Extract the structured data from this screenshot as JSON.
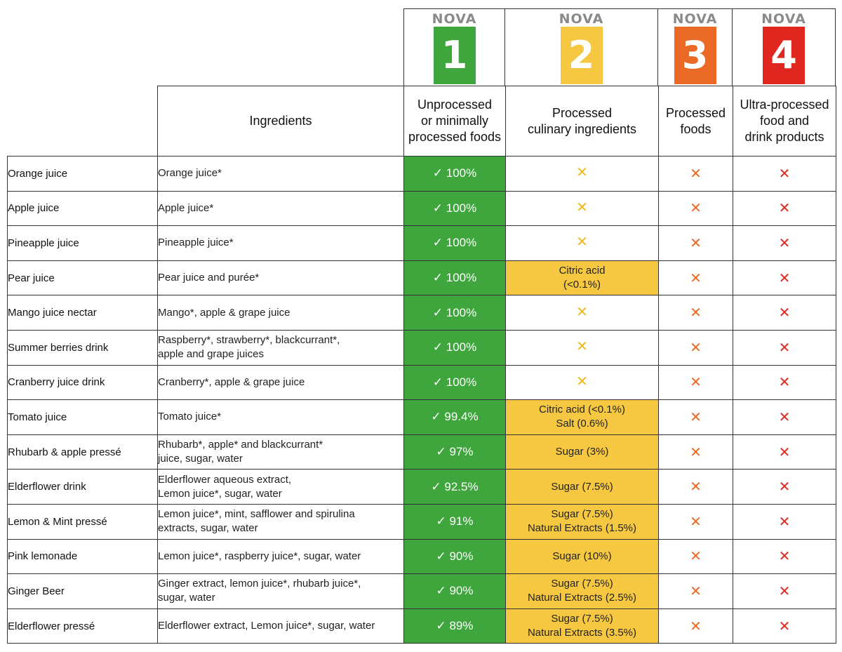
{
  "nova_columns": [
    {
      "label": "NOVA",
      "number": "1",
      "color": "#3ea63c",
      "title_lines": [
        "Unprocessed",
        "or minimally",
        "processed foods"
      ]
    },
    {
      "label": "NOVA",
      "number": "2",
      "color": "#f6c842",
      "title_lines": [
        "Processed",
        "culinary ingredients"
      ]
    },
    {
      "label": "NOVA",
      "number": "3",
      "color": "#ea6a25",
      "title_lines": [
        "Processed",
        "foods"
      ]
    },
    {
      "label": "NOVA",
      "number": "4",
      "color": "#e0271f",
      "title_lines": [
        "Ultra-processed",
        "food and",
        "drink products"
      ]
    }
  ],
  "ingredients_header": "Ingredients",
  "no_mark": "✕",
  "rows": [
    {
      "product": "Orange juice",
      "ingredients": [
        "Orange juice*"
      ],
      "nova1": "✓  100%",
      "nova2": []
    },
    {
      "product": "Apple juice",
      "ingredients": [
        "Apple juice*"
      ],
      "nova1": "✓  100%",
      "nova2": []
    },
    {
      "product": "Pineapple juice",
      "ingredients": [
        "Pineapple juice*"
      ],
      "nova1": "✓  100%",
      "nova2": []
    },
    {
      "product": "Pear juice",
      "ingredients": [
        "Pear juice and purée*"
      ],
      "nova1": "✓  100%",
      "nova2": [
        "Citric acid",
        "(<0.1%)"
      ]
    },
    {
      "product": "Mango juice nectar",
      "ingredients": [
        "Mango*, apple & grape juice"
      ],
      "nova1": "✓  100%",
      "nova2": []
    },
    {
      "product": "Summer berries drink",
      "ingredients": [
        "Raspberry*, strawberry*, blackcurrant*,",
        "apple and grape juices"
      ],
      "nova1": "✓  100%",
      "nova2": []
    },
    {
      "product": "Cranberry juice drink",
      "ingredients": [
        "Cranberry*, apple & grape juice"
      ],
      "nova1": "✓  100%",
      "nova2": []
    },
    {
      "product": "Tomato juice",
      "ingredients": [
        "Tomato juice*"
      ],
      "nova1": "✓  99.4%",
      "nova2": [
        "Citric acid (<0.1%)",
        "Salt (0.6%)"
      ]
    },
    {
      "product": "Rhubarb & apple pressé",
      "ingredients": [
        "Rhubarb*, apple* and blackcurrant*",
        "juice, sugar, water"
      ],
      "nova1": "✓  97%",
      "nova2": [
        "Sugar (3%)"
      ]
    },
    {
      "product": "Elderflower drink",
      "ingredients": [
        "Elderflower aqueous extract,",
        "Lemon juice*, sugar, water"
      ],
      "nova1": "✓  92.5%",
      "nova2": [
        "Sugar (7.5%)"
      ]
    },
    {
      "product": "Lemon & Mint pressé",
      "ingredients": [
        "Lemon juice*, mint, safflower and spirulina",
        "extracts, sugar, water"
      ],
      "nova1": "✓  91%",
      "nova2": [
        "Sugar (7.5%)",
        "Natural Extracts (1.5%)"
      ]
    },
    {
      "product": "Pink lemonade",
      "ingredients": [
        "Lemon juice*, raspberry juice*, sugar, water"
      ],
      "nova1": "✓  90%",
      "nova2": [
        "Sugar  (10%)"
      ]
    },
    {
      "product": "Ginger Beer",
      "ingredients": [
        "Ginger extract, lemon juice*, rhubarb juice*,",
        "sugar, water"
      ],
      "nova1": "✓  90%",
      "nova2": [
        "Sugar (7.5%)",
        "Natural Extracts (2.5%)"
      ]
    },
    {
      "product": "Elderflower pressé",
      "ingredients": [
        "Elderflower extract, Lemon juice*, sugar, water"
      ],
      "nova1": "✓  89%",
      "nova2": [
        "Sugar (7.5%)",
        "Natural Extracts (3.5%)"
      ]
    }
  ]
}
